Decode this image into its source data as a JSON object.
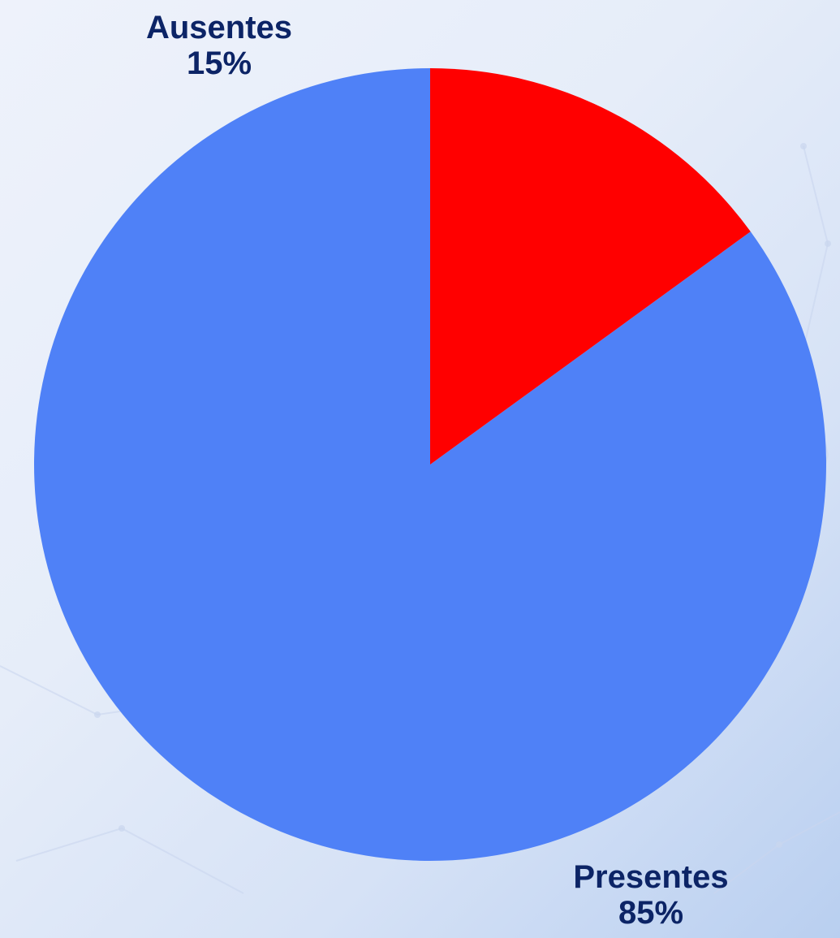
{
  "chart_data": {
    "type": "pie",
    "start_angle_deg": 0,
    "direction": "counterclockwise",
    "slices": [
      {
        "label": "Presentes",
        "value": 85,
        "display": "85%",
        "color": "#4f81f7"
      },
      {
        "label": "Ausentes",
        "value": 15,
        "display": "15%",
        "color": "#ff0000"
      }
    ],
    "label_color": "#0c2466"
  }
}
